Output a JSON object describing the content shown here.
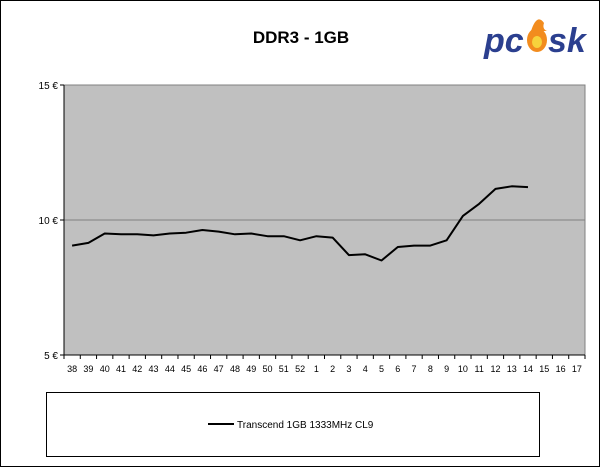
{
  "chart_data": {
    "type": "line",
    "title": "DDR3 - 1GB",
    "xlabel": "",
    "ylabel": "",
    "categories": [
      "38",
      "39",
      "40",
      "41",
      "42",
      "43",
      "44",
      "45",
      "46",
      "47",
      "48",
      "49",
      "50",
      "51",
      "52",
      "1",
      "2",
      "3",
      "4",
      "5",
      "6",
      "7",
      "8",
      "9",
      "10",
      "11",
      "12",
      "13",
      "14",
      "15",
      "16",
      "17"
    ],
    "ylim": [
      5,
      15
    ],
    "yticks": [
      5,
      10,
      15
    ],
    "ytick_labels": [
      "5 €",
      "10 €",
      "15 €"
    ],
    "grid": "horizontal",
    "legend_position": "bottom",
    "series": [
      {
        "name": "Transcend 1GB 1333MHz CL9",
        "color": "#000000",
        "values": [
          9.05,
          9.15,
          9.5,
          9.47,
          9.47,
          9.43,
          9.5,
          9.53,
          9.63,
          9.57,
          9.47,
          9.5,
          9.4,
          9.4,
          9.25,
          9.4,
          9.35,
          8.7,
          8.73,
          8.5,
          9.0,
          9.05,
          9.05,
          9.25,
          10.15,
          10.6,
          11.15,
          11.25,
          11.22,
          null,
          null,
          null
        ]
      }
    ]
  },
  "logo": {
    "text": "pc",
    "accent_text": "sk",
    "colors": {
      "primary": "#2b3f8f",
      "flame": "#f28c1e",
      "flame_inner": "#f7d33c"
    }
  },
  "colors": {
    "plot_bg": "#c0c0c0",
    "gridline": "#808080",
    "line": "#000000"
  }
}
